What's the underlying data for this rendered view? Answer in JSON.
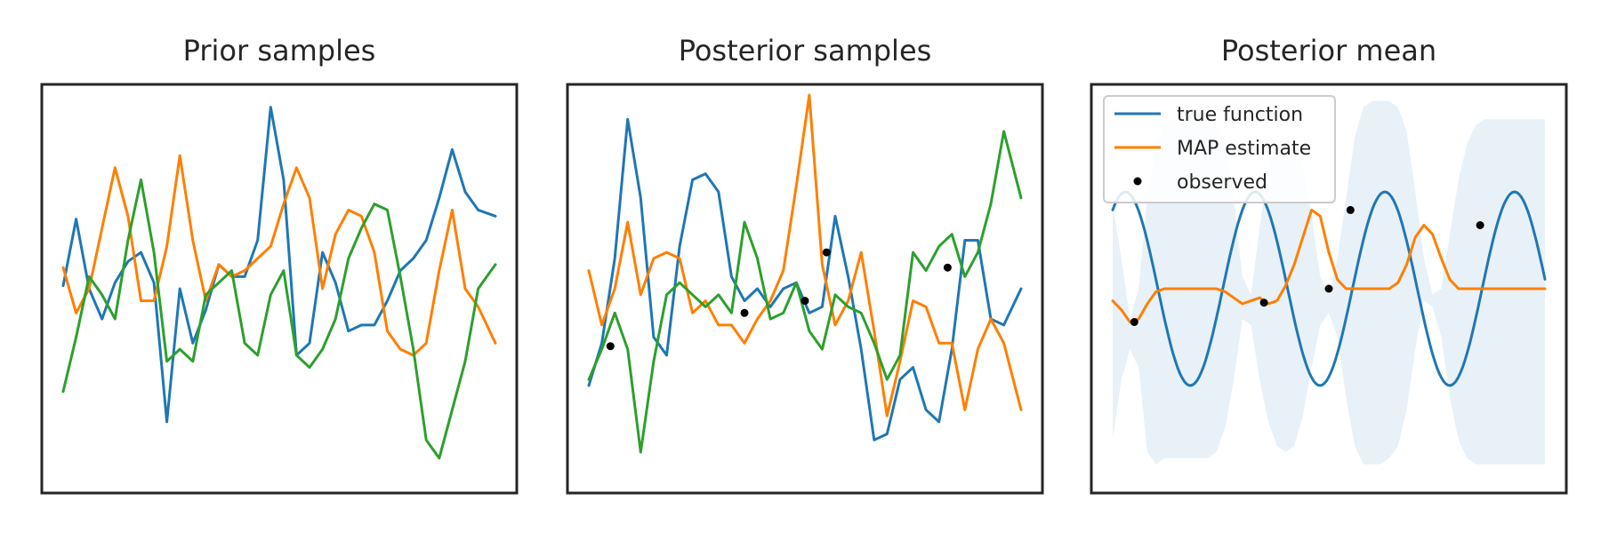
{
  "chart_data": [
    {
      "type": "line",
      "title": "Prior samples",
      "xlabel": "",
      "ylabel": "",
      "xlim": [
        0,
        1
      ],
      "ylim": [
        -3.2,
        3.2
      ],
      "grid": false,
      "series": [
        {
          "color": "#1f77b4",
          "x": [
            0.0,
            0.03,
            0.06,
            0.09,
            0.12,
            0.15,
            0.18,
            0.21,
            0.24,
            0.27,
            0.3,
            0.33,
            0.36,
            0.39,
            0.42,
            0.45,
            0.48,
            0.51,
            0.54,
            0.57,
            0.6,
            0.63,
            0.66,
            0.69,
            0.72,
            0.75,
            0.78,
            0.81,
            0.84,
            0.87,
            0.9,
            0.93,
            0.96,
            1.0
          ],
          "y": [
            0.05,
            1.15,
            0.0,
            -0.5,
            0.1,
            0.45,
            0.6,
            0.1,
            -2.2,
            0.0,
            -0.9,
            -0.35,
            0.4,
            0.2,
            0.2,
            0.8,
            3.0,
            1.8,
            -1.1,
            -0.9,
            0.6,
            0.1,
            -0.7,
            -0.6,
            -0.6,
            -0.2,
            0.3,
            0.5,
            0.8,
            1.5,
            2.3,
            1.6,
            1.3,
            1.2
          ]
        },
        {
          "color": "#ff7f00",
          "x": [
            0.0,
            0.03,
            0.06,
            0.09,
            0.12,
            0.15,
            0.18,
            0.21,
            0.24,
            0.27,
            0.3,
            0.33,
            0.36,
            0.39,
            0.42,
            0.45,
            0.48,
            0.51,
            0.54,
            0.57,
            0.6,
            0.63,
            0.66,
            0.69,
            0.72,
            0.75,
            0.78,
            0.81,
            0.84,
            0.87,
            0.9,
            0.93,
            0.96,
            1.0
          ],
          "y": [
            0.35,
            -0.4,
            0.0,
            1.0,
            2.0,
            1.2,
            -0.2,
            -0.2,
            0.7,
            2.2,
            0.8,
            -0.2,
            0.4,
            0.2,
            0.3,
            0.5,
            0.7,
            1.4,
            2.0,
            1.5,
            0.0,
            0.9,
            1.3,
            1.2,
            0.6,
            -0.7,
            -1.0,
            -1.1,
            -0.9,
            0.3,
            1.3,
            0.0,
            -0.3,
            -0.9
          ]
        },
        {
          "color": "#2ca02c",
          "x": [
            0.0,
            0.03,
            0.06,
            0.09,
            0.12,
            0.15,
            0.18,
            0.21,
            0.24,
            0.27,
            0.3,
            0.33,
            0.36,
            0.39,
            0.42,
            0.45,
            0.48,
            0.51,
            0.54,
            0.57,
            0.6,
            0.63,
            0.66,
            0.69,
            0.72,
            0.75,
            0.78,
            0.81,
            0.84,
            0.87,
            0.9,
            0.93,
            0.96,
            1.0
          ],
          "y": [
            -1.7,
            -0.8,
            0.2,
            -0.1,
            -0.5,
            0.8,
            1.8,
            0.6,
            -1.2,
            -1.0,
            -1.2,
            -0.1,
            0.1,
            0.3,
            -0.9,
            -1.1,
            -0.1,
            0.3,
            -1.1,
            -1.3,
            -1.0,
            -0.5,
            0.5,
            1.0,
            1.4,
            1.3,
            0.2,
            -1.0,
            -2.5,
            -2.8,
            -2.0,
            -1.2,
            0.0,
            0.4
          ]
        }
      ]
    },
    {
      "type": "line",
      "title": "Posterior samples",
      "xlabel": "",
      "ylabel": "",
      "xlim": [
        0,
        1
      ],
      "ylim": [
        -3.2,
        3.2
      ],
      "grid": false,
      "series": [
        {
          "color": "#1f77b4",
          "x": [
            0.0,
            0.03,
            0.06,
            0.09,
            0.12,
            0.15,
            0.18,
            0.21,
            0.24,
            0.27,
            0.3,
            0.33,
            0.36,
            0.39,
            0.42,
            0.45,
            0.48,
            0.51,
            0.54,
            0.57,
            0.6,
            0.63,
            0.66,
            0.69,
            0.72,
            0.75,
            0.78,
            0.81,
            0.84,
            0.87,
            0.9,
            0.93,
            0.96,
            1.0
          ],
          "y": [
            -1.6,
            -0.9,
            0.5,
            2.8,
            1.5,
            -0.8,
            -1.1,
            0.7,
            1.8,
            1.9,
            1.6,
            0.2,
            -0.2,
            0.0,
            -0.3,
            0.0,
            0.1,
            -0.4,
            -0.3,
            1.2,
            0.2,
            -1.0,
            -2.5,
            -2.4,
            -1.5,
            -1.3,
            -2.0,
            -2.2,
            -1.0,
            0.8,
            0.8,
            -0.5,
            -0.6,
            0.0
          ]
        },
        {
          "color": "#ff7f00",
          "x": [
            0.0,
            0.03,
            0.06,
            0.09,
            0.12,
            0.15,
            0.18,
            0.21,
            0.24,
            0.27,
            0.3,
            0.33,
            0.36,
            0.39,
            0.42,
            0.45,
            0.48,
            0.51,
            0.54,
            0.57,
            0.6,
            0.63,
            0.66,
            0.69,
            0.72,
            0.75,
            0.78,
            0.81,
            0.84,
            0.87,
            0.9,
            0.93,
            0.96,
            1.0
          ],
          "y": [
            0.3,
            -0.6,
            0.0,
            1.1,
            -0.1,
            0.5,
            0.6,
            0.5,
            -0.4,
            -0.2,
            -0.6,
            -0.6,
            -0.9,
            -0.5,
            -0.2,
            0.3,
            1.7,
            3.2,
            0.4,
            -0.6,
            -0.2,
            0.6,
            -0.7,
            -2.1,
            -1.2,
            -0.2,
            -0.3,
            -0.9,
            -0.9,
            -2.0,
            -1.0,
            -0.5,
            -0.9,
            -2.0
          ]
        },
        {
          "color": "#2ca02c",
          "x": [
            0.0,
            0.03,
            0.06,
            0.09,
            0.12,
            0.15,
            0.18,
            0.21,
            0.24,
            0.27,
            0.3,
            0.33,
            0.36,
            0.39,
            0.42,
            0.45,
            0.48,
            0.51,
            0.54,
            0.57,
            0.6,
            0.63,
            0.66,
            0.69,
            0.72,
            0.75,
            0.78,
            0.81,
            0.84,
            0.87,
            0.9,
            0.93,
            0.96,
            1.0
          ],
          "y": [
            -1.5,
            -1.0,
            -0.4,
            -1.0,
            -2.7,
            -1.2,
            -0.1,
            0.1,
            -0.1,
            -0.3,
            -0.1,
            -0.4,
            1.1,
            0.5,
            -0.5,
            -0.4,
            0.1,
            -0.7,
            -1.0,
            -0.1,
            -0.3,
            -0.4,
            -0.9,
            -1.5,
            -1.1,
            0.6,
            0.3,
            0.7,
            0.9,
            0.2,
            0.6,
            1.4,
            2.6,
            1.5
          ]
        }
      ],
      "points": {
        "color": "#000000",
        "x": [
          0.05,
          0.36,
          0.5,
          0.55,
          0.83
        ],
        "y": [
          -0.95,
          -0.4,
          -0.2,
          0.6,
          0.35
        ]
      }
    },
    {
      "type": "line",
      "title": "Posterior mean",
      "xlabel": "",
      "ylabel": "",
      "xlim": [
        0,
        1
      ],
      "ylim": [
        -3.2,
        3.2
      ],
      "grid": false,
      "legend_position": "top-left",
      "band": {
        "color": "#1f77b4",
        "opacity": 0.1,
        "x": [
          0.0,
          0.02,
          0.04,
          0.06,
          0.08,
          0.1,
          0.12,
          0.14,
          0.16,
          0.18,
          0.2,
          0.22,
          0.24,
          0.26,
          0.28,
          0.3,
          0.32,
          0.34,
          0.36,
          0.38,
          0.4,
          0.42,
          0.44,
          0.46,
          0.48,
          0.5,
          0.52,
          0.54,
          0.56,
          0.58,
          0.6,
          0.62,
          0.64,
          0.66,
          0.68,
          0.7,
          0.72,
          0.74,
          0.76,
          0.78,
          0.8,
          0.82,
          0.84,
          0.86,
          0.88,
          0.9,
          0.92,
          0.94,
          0.96,
          0.98,
          1.0
        ],
        "upper": [
          1.4,
          0.5,
          -0.5,
          0.0,
          1.5,
          2.4,
          2.7,
          2.8,
          2.8,
          2.8,
          2.8,
          2.8,
          2.7,
          2.4,
          1.5,
          0.2,
          -0.1,
          1.0,
          2.0,
          2.4,
          2.5,
          2.4,
          2.0,
          1.2,
          0.2,
          -0.1,
          0.5,
          1.5,
          2.5,
          3.0,
          3.1,
          3.1,
          3.1,
          3.0,
          2.6,
          1.6,
          0.5,
          -0.1,
          0.0,
          0.9,
          1.8,
          2.4,
          2.7,
          2.8,
          2.8,
          2.8,
          2.8,
          2.8,
          2.8,
          2.8,
          2.8
        ],
        "lower": [
          -2.5,
          -1.5,
          -1.0,
          -1.3,
          -2.7,
          -2.9,
          -2.8,
          -2.8,
          -2.8,
          -2.8,
          -2.8,
          -2.8,
          -2.7,
          -2.3,
          -1.5,
          -0.5,
          -0.6,
          -1.5,
          -2.2,
          -2.6,
          -2.7,
          -2.6,
          -2.1,
          -1.3,
          -0.6,
          -0.4,
          -0.8,
          -1.8,
          -2.6,
          -2.9,
          -2.9,
          -2.9,
          -2.8,
          -2.6,
          -2.0,
          -1.0,
          -0.2,
          -0.3,
          -0.8,
          -1.8,
          -2.5,
          -2.8,
          -2.9,
          -2.9,
          -2.9,
          -2.9,
          -2.9,
          -2.9,
          -2.9,
          -2.9,
          -2.9
        ]
      },
      "series": [
        {
          "name": "true function",
          "color": "#1f77b4",
          "function": "sine",
          "amplitude": 1.6,
          "period": 0.3,
          "phase": 0.95,
          "x_range": [
            0,
            1
          ]
        },
        {
          "name": "MAP estimate",
          "color": "#ff7f00",
          "x": [
            0.0,
            0.02,
            0.04,
            0.06,
            0.08,
            0.1,
            0.12,
            0.14,
            0.16,
            0.18,
            0.2,
            0.22,
            0.24,
            0.26,
            0.28,
            0.3,
            0.32,
            0.34,
            0.36,
            0.38,
            0.4,
            0.42,
            0.44,
            0.46,
            0.48,
            0.5,
            0.52,
            0.54,
            0.56,
            0.58,
            0.6,
            0.62,
            0.64,
            0.66,
            0.68,
            0.7,
            0.72,
            0.74,
            0.76,
            0.78,
            0.8,
            0.82,
            0.84,
            0.86,
            0.88,
            0.9,
            0.92,
            0.94,
            0.96,
            0.98,
            1.0
          ],
          "y": [
            -0.2,
            -0.35,
            -0.55,
            -0.5,
            -0.25,
            -0.05,
            0.0,
            0.0,
            0.0,
            0.0,
            0.0,
            0.0,
            0.0,
            -0.05,
            -0.15,
            -0.25,
            -0.2,
            -0.15,
            -0.25,
            -0.2,
            0.05,
            0.4,
            0.85,
            1.3,
            1.2,
            0.6,
            0.15,
            0.0,
            0.0,
            0.0,
            0.0,
            0.0,
            0.0,
            0.1,
            0.4,
            0.85,
            1.05,
            0.9,
            0.5,
            0.15,
            0.0,
            0.0,
            0.0,
            0.0,
            0.0,
            0.0,
            0.0,
            0.0,
            0.0,
            0.0,
            0.0
          ]
        },
        {
          "name": "observed",
          "color": "#000000",
          "marker": "point",
          "x": [
            0.05,
            0.35,
            0.5,
            0.55,
            0.85
          ],
          "y": [
            -0.55,
            -0.23,
            0.0,
            1.3,
            1.05
          ]
        }
      ]
    }
  ]
}
